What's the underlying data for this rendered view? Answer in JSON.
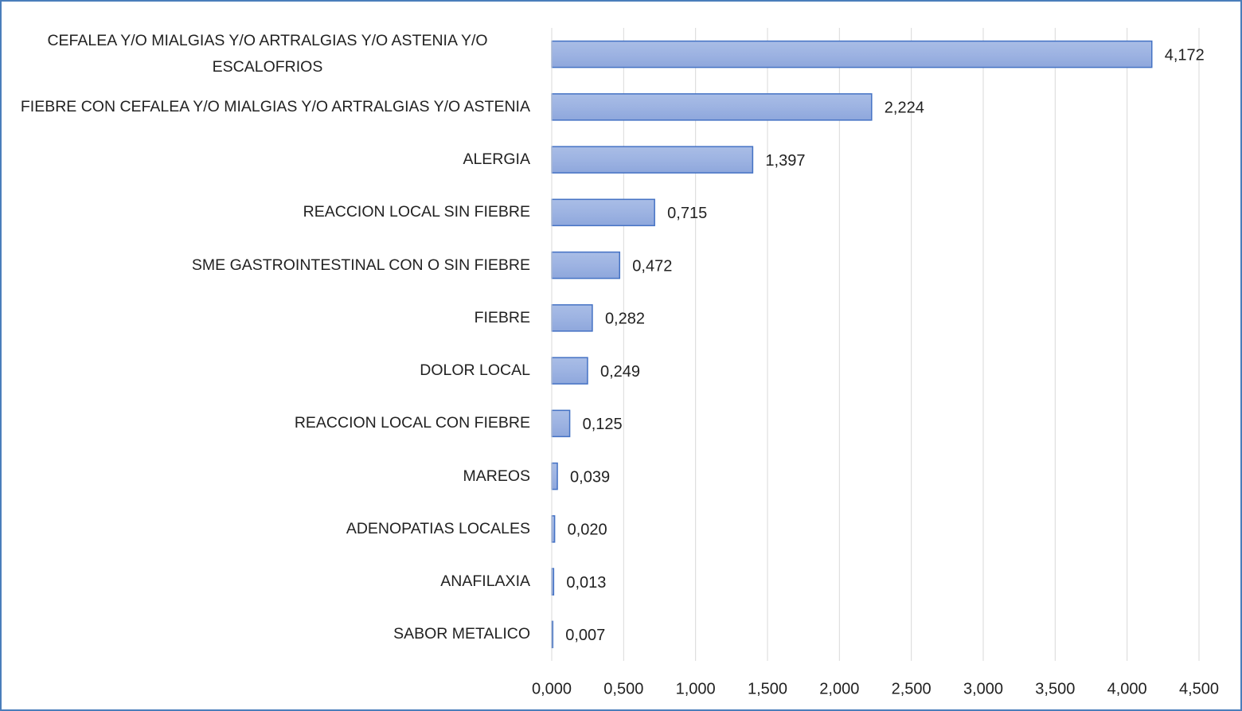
{
  "chart_data": {
    "type": "bar",
    "orientation": "horizontal",
    "categories": [
      "CEFALEA Y/O MIALGIAS Y/O  ARTRALGIAS Y/O ASTENIA Y/O ESCALOFRIOS",
      "FIEBRE CON CEFALEA Y/O MIALGIAS Y/O ARTRALGIAS Y/O ASTENIA",
      "ALERGIA",
      "REACCION LOCAL SIN FIEBRE",
      "SME GASTROINTESTINAL CON O SIN FIEBRE",
      "FIEBRE",
      "DOLOR LOCAL",
      "REACCION LOCAL CON FIEBRE",
      "MAREOS",
      "ADENOPATIAS LOCALES",
      "ANAFILAXIA",
      "SABOR METALICO"
    ],
    "values": [
      4.172,
      2.224,
      1.397,
      0.715,
      0.472,
      0.282,
      0.249,
      0.125,
      0.039,
      0.02,
      0.013,
      0.007
    ],
    "value_labels": [
      "4,172",
      "2,224",
      "1,397",
      "0,715",
      "0,472",
      "0,282",
      "0,249",
      "0,125",
      "0,039",
      "0,020",
      "0,013",
      "0,007"
    ],
    "color": "#4472c4",
    "xlim": [
      0,
      4.5
    ],
    "xticks": [
      {
        "value": 0,
        "label": "0,000"
      },
      {
        "value": 0.5,
        "label": "0,500"
      },
      {
        "value": 1,
        "label": "1,000"
      },
      {
        "value": 1.5,
        "label": "1,500"
      },
      {
        "value": 2,
        "label": "2,000"
      },
      {
        "value": 2.5,
        "label": "2,500"
      },
      {
        "value": 3,
        "label": "3,000"
      },
      {
        "value": 3.5,
        "label": "3,500"
      },
      {
        "value": 4,
        "label": "4,000"
      },
      {
        "value": 4.5,
        "label": "4,500"
      }
    ],
    "grid": true
  }
}
